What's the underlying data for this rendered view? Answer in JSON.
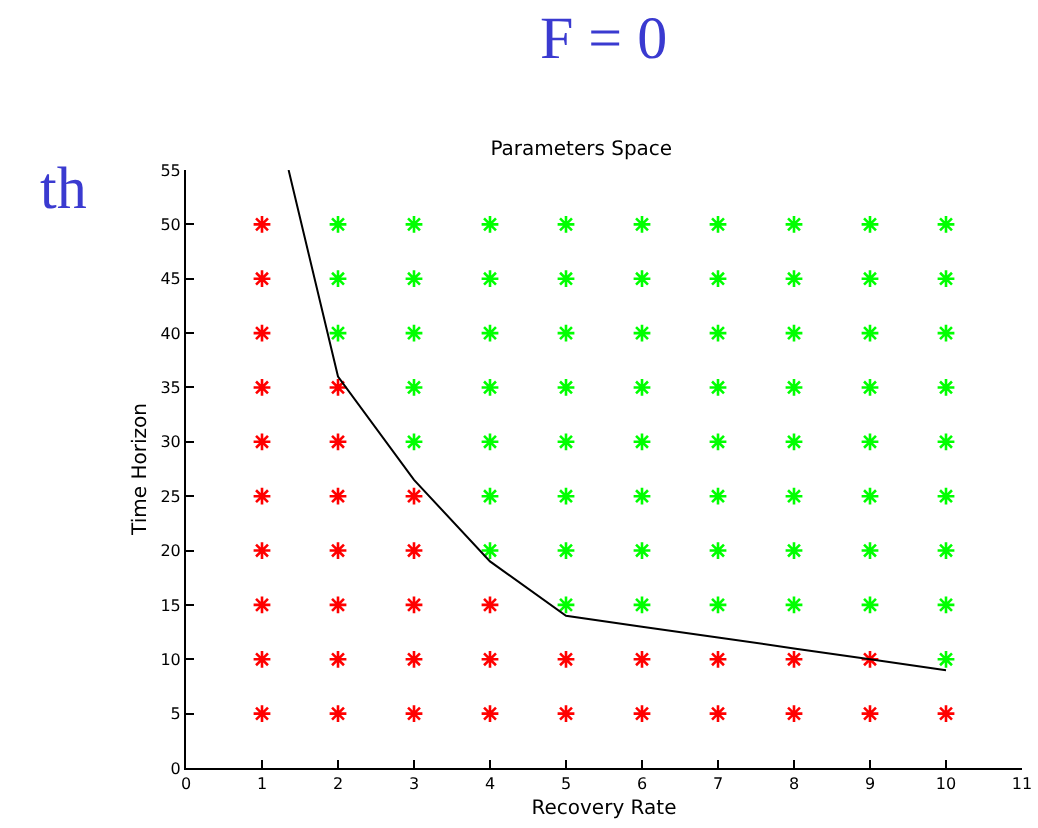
{
  "chart_data": {
    "type": "scatter",
    "title": "Parameters Space",
    "xlabel": "Recovery Rate",
    "ylabel": "Time Horizon",
    "annotations": [
      "F = 0",
      "th"
    ],
    "series": [
      {
        "color": "#ff0000",
        "marker": "cross",
        "x": [
          1,
          1,
          1,
          1,
          1,
          1,
          1,
          1,
          1,
          1,
          2,
          2,
          2,
          2,
          2,
          2,
          2,
          3,
          3,
          3,
          3,
          3,
          4,
          4,
          4,
          5,
          5,
          6,
          6,
          7,
          7,
          8,
          8,
          9,
          9,
          10
        ],
        "values": [
          5,
          10,
          15,
          20,
          25,
          30,
          35,
          40,
          45,
          50,
          5,
          10,
          15,
          20,
          25,
          30,
          35,
          5,
          10,
          15,
          20,
          25,
          5,
          10,
          15,
          5,
          10,
          5,
          10,
          5,
          10,
          5,
          10,
          5,
          10,
          5
        ]
      },
      {
        "color": "#00ff00",
        "marker": "cross",
        "x": [
          2,
          2,
          2,
          3,
          3,
          3,
          3,
          3,
          4,
          4,
          4,
          4,
          4,
          4,
          4,
          5,
          5,
          5,
          5,
          5,
          5,
          5,
          5,
          6,
          6,
          6,
          6,
          6,
          6,
          6,
          6,
          7,
          7,
          7,
          7,
          7,
          7,
          7,
          7,
          8,
          8,
          8,
          8,
          8,
          8,
          8,
          8,
          9,
          9,
          9,
          9,
          9,
          9,
          9,
          9,
          10,
          10,
          10,
          10,
          10,
          10,
          10,
          10,
          10
        ],
        "values": [
          40,
          45,
          50,
          30,
          35,
          40,
          45,
          50,
          20,
          25,
          30,
          35,
          40,
          45,
          50,
          15,
          20,
          25,
          30,
          35,
          40,
          45,
          50,
          15,
          20,
          25,
          30,
          35,
          40,
          45,
          50,
          15,
          20,
          25,
          30,
          35,
          40,
          45,
          50,
          15,
          20,
          25,
          30,
          35,
          40,
          45,
          50,
          15,
          20,
          25,
          30,
          35,
          40,
          45,
          50,
          10,
          15,
          20,
          25,
          30,
          35,
          40,
          45,
          50
        ]
      },
      {
        "type": "line",
        "color": "#000000",
        "marker": "none",
        "x": [
          1.35,
          2,
          3,
          4,
          5,
          6,
          7,
          8,
          9,
          10
        ],
        "values": [
          55,
          36,
          26.5,
          19,
          14,
          13,
          12,
          11,
          10,
          9
        ]
      }
    ],
    "xlim": [
      0,
      11
    ],
    "xticks": [
      0,
      1,
      2,
      3,
      4,
      5,
      6,
      7,
      8,
      9,
      10,
      11
    ],
    "ylim": [
      0,
      55
    ],
    "yticks": [
      0,
      5,
      10,
      15,
      20,
      25,
      30,
      35,
      40,
      45,
      50,
      55
    ]
  }
}
